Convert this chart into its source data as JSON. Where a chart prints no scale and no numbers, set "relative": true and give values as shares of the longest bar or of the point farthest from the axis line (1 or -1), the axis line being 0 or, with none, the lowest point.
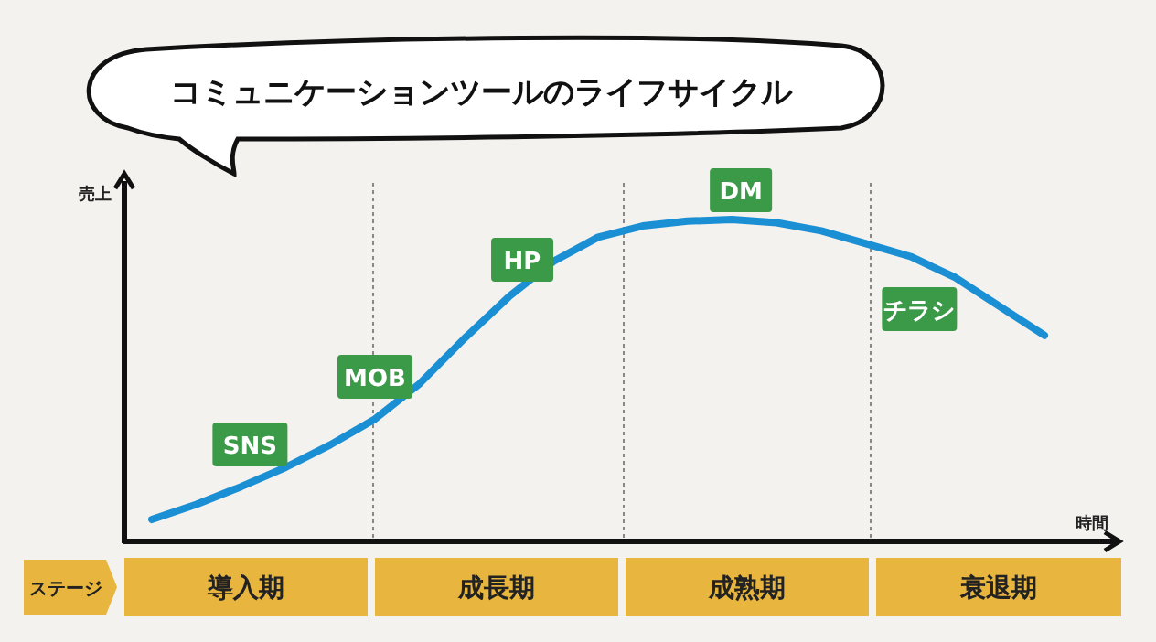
{
  "chart_data": {
    "type": "line",
    "title": "コミュニケーションツールのライフサイクル",
    "ylabel": "売上",
    "xlabel": "時間",
    "relative": true,
    "categories": [
      null,
      null,
      null,
      null,
      null,
      null,
      null,
      null,
      null,
      null,
      null,
      null,
      null,
      null,
      null,
      null,
      null,
      null,
      null,
      null,
      null
    ],
    "series": [
      {
        "color": "#1b8fd4",
        "values": [
          0.068,
          0.115,
          0.17,
          0.23,
          0.3,
          0.38,
          0.49,
          0.63,
          0.76,
          0.87,
          0.945,
          0.98,
          0.995,
          1,
          0.99,
          0.965,
          0.925,
          0.885,
          0.82,
          0.73,
          0.64
        ]
      }
    ],
    "annotations": [
      "SNS",
      "MOB",
      "HP",
      "DM",
      "チラシ",
      "ステージ",
      "導入期",
      "成長期",
      "成熟期",
      "衰退期"
    ],
    "grid": false,
    "legend": false,
    "marker": "none",
    "line_style": "solid"
  }
}
